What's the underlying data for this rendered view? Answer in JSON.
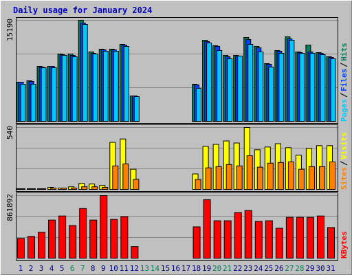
{
  "chart_data": [
    {
      "type": "bar",
      "title": "Daily usage for January 2024",
      "ylim": [
        0,
        15190
      ],
      "yticks": [
        15190
      ],
      "series": [
        {
          "name": "Hits",
          "color": "#00805c",
          "values": [
            5890,
            6097,
            8267,
            8267,
            10127,
            10127,
            15190,
            10437,
            10850,
            10850,
            11573,
            3823,
            0,
            0,
            0,
            0,
            0,
            5580,
            12193,
            11367,
            9920,
            9920,
            12607,
            11263,
            8680,
            10643,
            12710,
            10437,
            11470,
            10333,
            9713
          ]
        },
        {
          "name": "Files",
          "color": "#0040ff",
          "values": [
            5890,
            5993,
            8163,
            8267,
            10023,
            9920,
            14777,
            10230,
            10747,
            10747,
            11470,
            3823,
            0,
            0,
            0,
            0,
            0,
            5477,
            11987,
            11263,
            9713,
            9817,
            12297,
            11057,
            8577,
            10540,
            12400,
            10333,
            10437,
            10230,
            9610
          ]
        },
        {
          "name": "Pages",
          "color": "#00c8ff",
          "values": [
            5580,
            5580,
            8060,
            8060,
            9920,
            9713,
            14570,
            10127,
            10540,
            10540,
            11263,
            3720,
            0,
            0,
            0,
            0,
            0,
            4960,
            11780,
            10643,
            9403,
            9817,
            11573,
            10437,
            8163,
            10230,
            12193,
            10230,
            10230,
            10023,
            9403
          ]
        }
      ]
    },
    {
      "type": "bar",
      "ylim": [
        0,
        540
      ],
      "yticks": [
        540
      ],
      "series": [
        {
          "name": "Visits",
          "color": "#ffff00",
          "values": [
            6,
            6,
            6,
            18,
            12,
            23,
            53,
            47,
            35,
            411,
            440,
            176,
            0,
            0,
            0,
            0,
            0,
            135,
            376,
            393,
            423,
            405,
            540,
            346,
            370,
            399,
            364,
            299,
            358,
            382,
            382
          ]
        },
        {
          "name": "Sites",
          "color": "#ff8000",
          "values": [
            6,
            6,
            6,
            12,
            12,
            12,
            23,
            23,
            18,
            205,
            223,
            88,
            0,
            0,
            0,
            0,
            0,
            88,
            188,
            199,
            217,
            205,
            294,
            194,
            229,
            235,
            240,
            176,
            199,
            199,
            240
          ]
        }
      ]
    },
    {
      "type": "bar",
      "ylim": [
        0,
        861892
      ],
      "yticks": [
        861892
      ],
      "categories": [
        "1",
        "2",
        "3",
        "4",
        "5",
        "6",
        "7",
        "8",
        "9",
        "10",
        "11",
        "12",
        "13",
        "14",
        "15",
        "16",
        "17",
        "18",
        "19",
        "20",
        "21",
        "22",
        "23",
        "24",
        "25",
        "26",
        "27",
        "28",
        "29",
        "30",
        "31"
      ],
      "category_colors": [
        "#000080",
        "#000080",
        "#000080",
        "#000080",
        "#000080",
        "#008060",
        "#008060",
        "#000080",
        "#000080",
        "#000080",
        "#000080",
        "#000080",
        "#008060",
        "#008060",
        "#000080",
        "#000080",
        "#000080",
        "#000080",
        "#000080",
        "#008060",
        "#008060",
        "#000080",
        "#000080",
        "#000080",
        "#000080",
        "#000080",
        "#008060",
        "#008060",
        "#000080",
        "#000080",
        "#000080"
      ],
      "series": [
        {
          "name": "KBytes",
          "color": "#ff0000",
          "values": [
            271680,
            299780,
            355980,
            524610,
            580820,
            449670,
            683870,
            524610,
            861892,
            533980,
            571450,
            159260,
            0,
            0,
            0,
            0,
            0,
            430930,
            805660,
            515240,
            515240,
            627660,
            655770,
            505880,
            515240,
            412200,
            562090,
            562090,
            562090,
            580820,
            421570
          ]
        }
      ]
    }
  ]
}
